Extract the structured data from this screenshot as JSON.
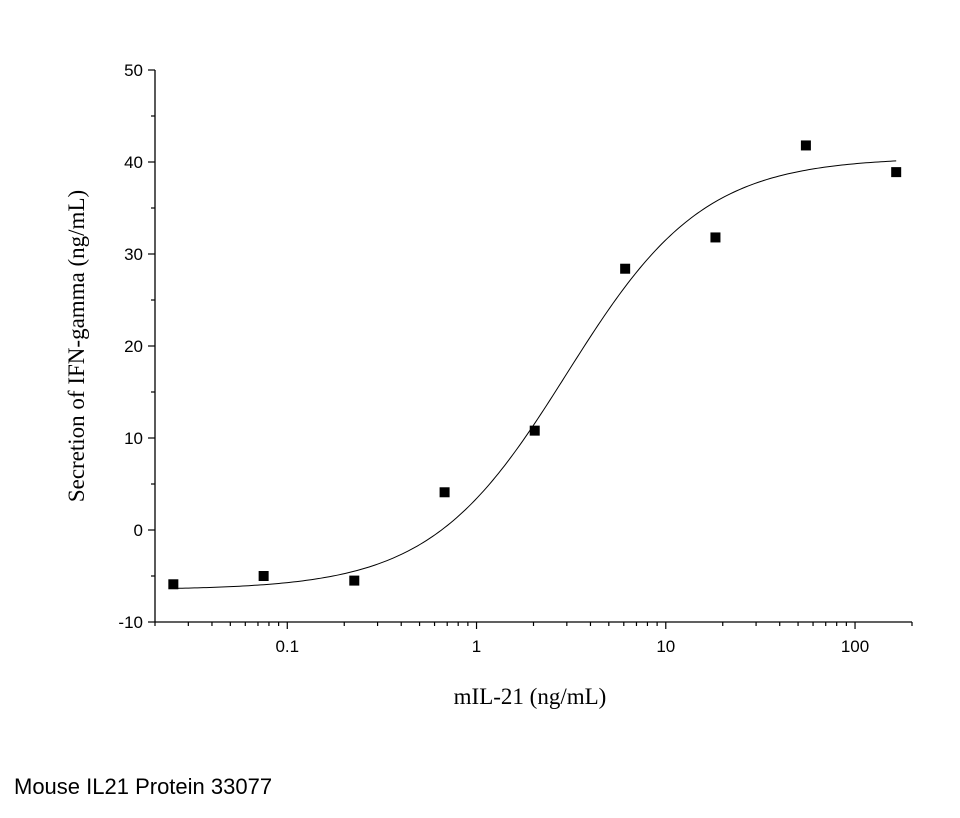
{
  "caption": "Mouse IL21 Protein 33077",
  "chart_data": {
    "type": "scatter",
    "xlabel": "mIL-21 (ng/mL)",
    "ylabel": "Secretion of IFN-gamma (ng/mL)",
    "x_scale": "log",
    "xlim": [
      0.02,
      200
    ],
    "ylim": [
      -10,
      50
    ],
    "x_ticks": [
      0.1,
      1,
      10,
      100
    ],
    "x_tick_labels": [
      "0.1",
      "1",
      "10",
      "100"
    ],
    "y_ticks": [
      -10,
      0,
      10,
      20,
      30,
      40,
      50
    ],
    "y_tick_labels": [
      "-10",
      "0",
      "10",
      "20",
      "30",
      "40",
      "50"
    ],
    "grid": false,
    "points": [
      {
        "x": 0.025,
        "y": -5.9
      },
      {
        "x": 0.075,
        "y": -5.0
      },
      {
        "x": 0.226,
        "y": -5.5
      },
      {
        "x": 0.678,
        "y": 4.1
      },
      {
        "x": 2.03,
        "y": 10.8
      },
      {
        "x": 6.1,
        "y": 28.4
      },
      {
        "x": 18.3,
        "y": 31.8
      },
      {
        "x": 55,
        "y": 41.8
      },
      {
        "x": 165,
        "y": 38.9
      }
    ],
    "fit": {
      "model": "4PL",
      "bottom": -6.5,
      "top": 40.5,
      "ec50": 3.0,
      "hill": 1.2,
      "x_range": [
        0.025,
        165
      ]
    }
  }
}
